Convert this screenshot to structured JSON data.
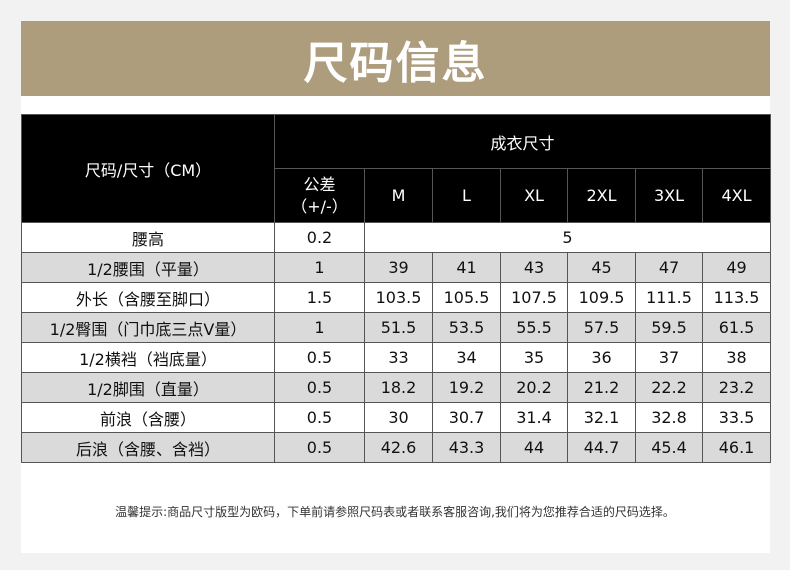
{
  "banner": {
    "title": "尺码信息"
  },
  "table": {
    "corner_label": "尺码/尺寸（CM）",
    "group_label": "成衣尺寸",
    "tolerance_label_line1": "公差",
    "tolerance_label_line2": "（+/-）",
    "sizes": [
      "M",
      "L",
      "XL",
      "2XL",
      "3XL",
      "4XL"
    ],
    "waist_height": {
      "label": "腰高",
      "tolerance": "0.2",
      "value": "5"
    },
    "rows": [
      {
        "label": "1/2腰围（平量）",
        "tolerance": "1",
        "values": [
          "39",
          "41",
          "43",
          "45",
          "47",
          "49"
        ]
      },
      {
        "label": "外长（含腰至脚口）",
        "tolerance": "1.5",
        "values": [
          "103.5",
          "105.5",
          "107.5",
          "109.5",
          "111.5",
          "113.5"
        ]
      },
      {
        "label": "1/2臀围（门巾底三点V量）",
        "tolerance": "1",
        "values": [
          "51.5",
          "53.5",
          "55.5",
          "57.5",
          "59.5",
          "61.5"
        ]
      },
      {
        "label": "1/2横裆（裆底量）",
        "tolerance": "0.5",
        "values": [
          "33",
          "34",
          "35",
          "36",
          "37",
          "38"
        ]
      },
      {
        "label": "1/2脚围（直量）",
        "tolerance": "0.5",
        "values": [
          "18.2",
          "19.2",
          "20.2",
          "21.2",
          "22.2",
          "23.2"
        ]
      },
      {
        "label": "前浪（含腰）",
        "tolerance": "0.5",
        "values": [
          "30",
          "30.7",
          "31.4",
          "32.1",
          "32.8",
          "33.5"
        ]
      },
      {
        "label": "后浪（含腰、含裆）",
        "tolerance": "0.5",
        "values": [
          "42.6",
          "43.3",
          "44",
          "44.7",
          "45.4",
          "46.1"
        ]
      }
    ]
  },
  "footer": {
    "note": "温馨提示:商品尺寸版型为欧码，下单前请参照尺码表或者联系客服咨询,我们将为您推荐合适的尺码选择。"
  },
  "colors": {
    "banner": "#ad9d7c",
    "header": "#000000",
    "stripe": "#dadada"
  }
}
